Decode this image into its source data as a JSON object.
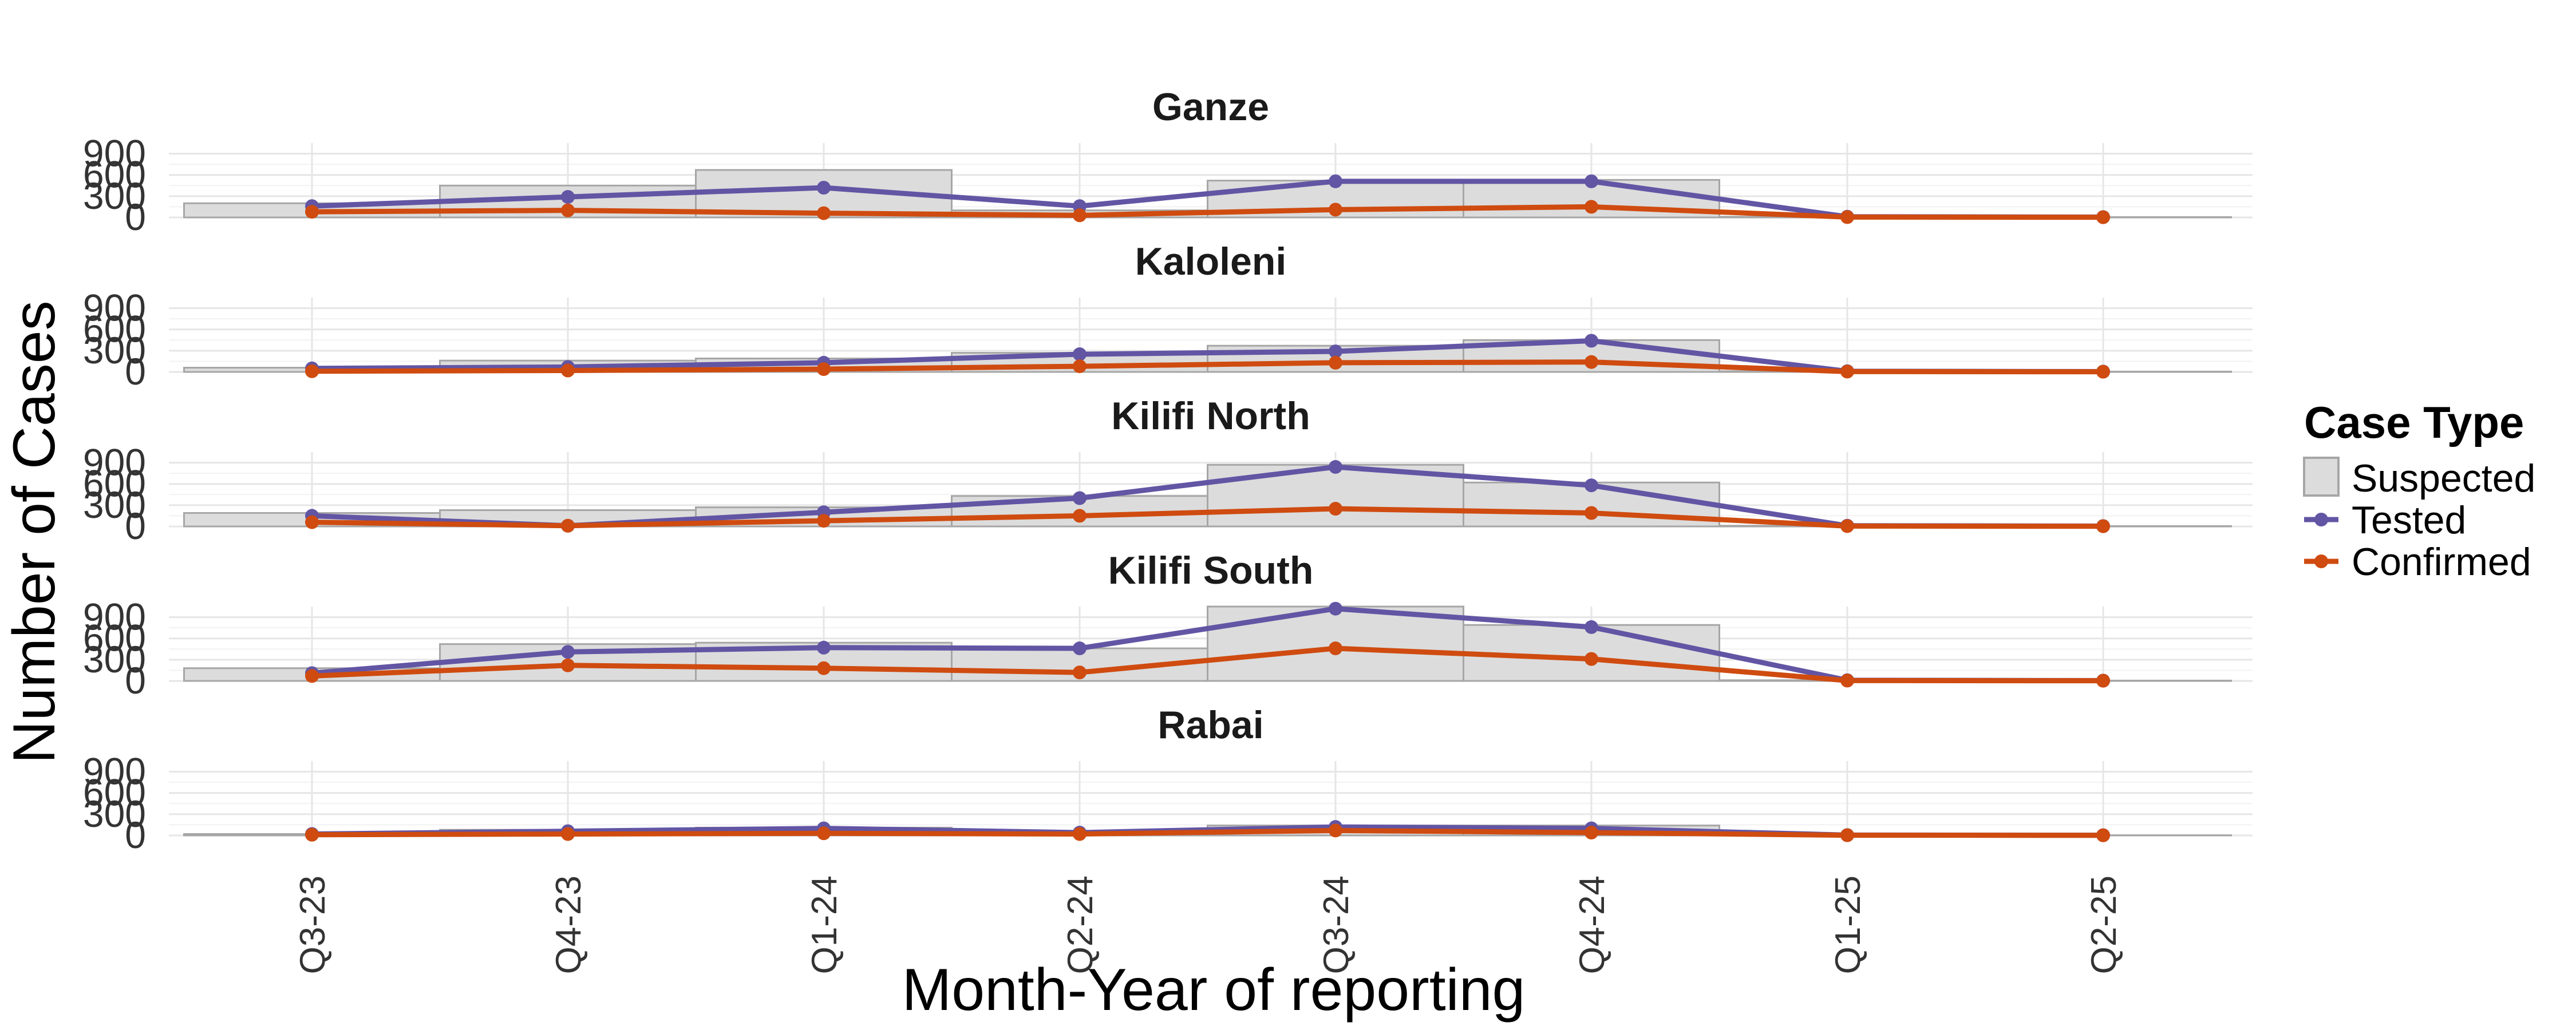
{
  "chart_data": {
    "type": "bar",
    "xlabel": "Month-Year of reporting",
    "ylabel": "Number of Cases",
    "categories": [
      "Q3-23",
      "Q4-23",
      "Q1-24",
      "Q2-24",
      "Q3-24",
      "Q4-24",
      "Q1-25",
      "Q2-25"
    ],
    "y_ticks": [
      0,
      300,
      600,
      900
    ],
    "ylim": [
      0,
      1050
    ],
    "grid": true,
    "legend": {
      "title": "Case Type",
      "position": "right",
      "entries": [
        "Suspected",
        "Tested",
        "Confirmed"
      ]
    },
    "colors": {
      "Suspected_fill": "#dcdcdc",
      "Suspected_stroke": "#a6a6a6",
      "Tested": "#6255a4",
      "Confirmed": "#cf4b10"
    },
    "panels": [
      {
        "title": "Ganze",
        "series": [
          {
            "name": "Suspected",
            "values": [
              200,
              450,
              670,
              100,
              520,
              530,
              10,
              5
            ]
          },
          {
            "name": "Tested",
            "values": [
              160,
              290,
              420,
              160,
              510,
              510,
              10,
              5
            ]
          },
          {
            "name": "Confirmed",
            "values": [
              80,
              100,
              60,
              30,
              110,
              150,
              5,
              3
            ]
          }
        ]
      },
      {
        "title": "Kaloleni",
        "series": [
          {
            "name": "Suspected",
            "values": [
              60,
              160,
              190,
              270,
              370,
              450,
              10,
              5
            ]
          },
          {
            "name": "Tested",
            "values": [
              50,
              70,
              130,
              250,
              290,
              440,
              10,
              5
            ]
          },
          {
            "name": "Confirmed",
            "values": [
              10,
              20,
              40,
              80,
              130,
              140,
              5,
              3
            ]
          }
        ]
      },
      {
        "title": "Kilifi North",
        "series": [
          {
            "name": "Suspected",
            "values": [
              190,
              230,
              270,
              430,
              870,
              620,
              10,
              5
            ]
          },
          {
            "name": "Tested",
            "values": [
              150,
              10,
              200,
              400,
              840,
              580,
              10,
              5
            ]
          },
          {
            "name": "Confirmed",
            "values": [
              60,
              10,
              80,
              150,
              250,
              190,
              5,
              3
            ]
          }
        ]
      },
      {
        "title": "Kilifi South",
        "series": [
          {
            "name": "Suspected",
            "values": [
              180,
              520,
              540,
              460,
              1050,
              790,
              10,
              5
            ]
          },
          {
            "name": "Tested",
            "values": [
              110,
              410,
              470,
              460,
              1020,
              760,
              10,
              5
            ]
          },
          {
            "name": "Confirmed",
            "values": [
              70,
              220,
              180,
              120,
              460,
              310,
              5,
              3
            ]
          }
        ]
      },
      {
        "title": "Rabai",
        "series": [
          {
            "name": "Suspected",
            "values": [
              20,
              80,
              110,
              60,
              140,
              140,
              5,
              3
            ]
          },
          {
            "name": "Tested",
            "values": [
              20,
              60,
              100,
              40,
              120,
              100,
              5,
              3
            ]
          },
          {
            "name": "Confirmed",
            "values": [
              10,
              20,
              30,
              20,
              70,
              40,
              3,
              2
            ]
          }
        ]
      }
    ]
  }
}
